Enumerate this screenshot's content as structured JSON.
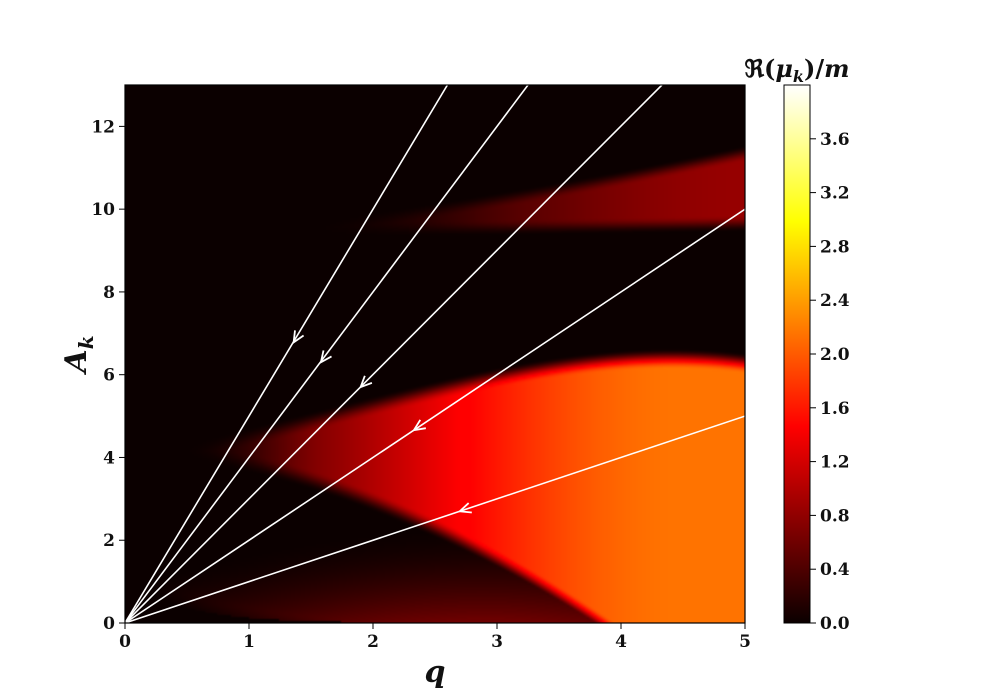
{
  "chart_data": {
    "type": "heatmap",
    "xlabel": "q",
    "ylabel": "A",
    "ylabel_sub": "k",
    "xlim": [
      0,
      5
    ],
    "ylim": [
      0,
      13
    ],
    "x_ticks": [
      0,
      1,
      2,
      3,
      4,
      5
    ],
    "x_tick_labels": [
      "0",
      "1",
      "2",
      "3",
      "4",
      "5"
    ],
    "y_ticks": [
      0,
      2,
      4,
      6,
      8,
      10,
      12
    ],
    "y_tick_labels": [
      "0",
      "2",
      "4",
      "6",
      "8",
      "10",
      "12"
    ],
    "colormap": "hot",
    "colorbar": {
      "title": "ℜ(μk)/m",
      "title_parts": [
        "ℜ(",
        "μ",
        "k",
        ")/",
        "m"
      ],
      "range": [
        0,
        4.0
      ],
      "ticks": [
        0.0,
        0.4,
        0.8,
        1.2,
        1.6,
        2.0,
        2.4,
        2.8,
        3.2,
        3.6
      ],
      "tick_labels": [
        "0.0",
        "0.4",
        "0.8",
        "1.2",
        "1.6",
        "2.0",
        "2.4",
        "2.8",
        "3.2",
        "3.6"
      ]
    },
    "trajectories": [
      {
        "slope": 1,
        "x_end": 5,
        "y_end": 5,
        "arrow_at": [
          2.7,
          2.7
        ]
      },
      {
        "slope": 2,
        "x_end": 5,
        "y_end": 10,
        "arrow_at": [
          2.33,
          4.66
        ]
      },
      {
        "slope": 3,
        "x_end": 4.33,
        "y_end": 13,
        "arrow_at": [
          1.9,
          5.7
        ]
      },
      {
        "slope": 4,
        "x_end": 3.25,
        "y_end": 13,
        "arrow_at": [
          1.58,
          6.3
        ]
      },
      {
        "slope": 5,
        "x_end": 2.6,
        "y_end": 13,
        "arrow_at": [
          1.36,
          6.78
        ]
      }
    ],
    "line_color": "#ffffff"
  }
}
